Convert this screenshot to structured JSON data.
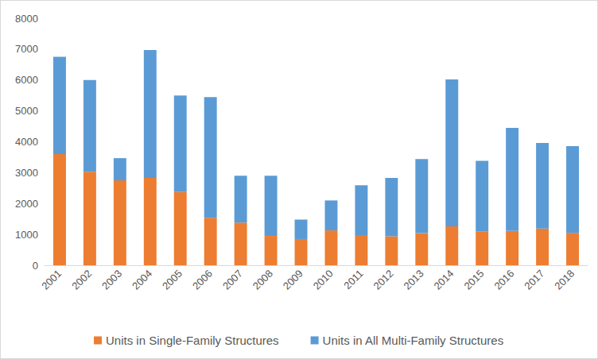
{
  "chart_data": {
    "type": "bar",
    "stacked": true,
    "categories": [
      "2001",
      "2002",
      "2003",
      "2004",
      "2005",
      "2006",
      "2007",
      "2008",
      "2009",
      "2010",
      "2011",
      "2012",
      "2013",
      "2014",
      "2015",
      "2016",
      "2017",
      "2018"
    ],
    "series": [
      {
        "name": "Units in Single-Family Structures",
        "color": "#ed7d31",
        "values": [
          3600,
          3030,
          2750,
          2830,
          2370,
          1540,
          1380,
          950,
          850,
          1130,
          980,
          940,
          1040,
          1260,
          1100,
          1110,
          1190,
          1050
        ]
      },
      {
        "name": "Units in All Multi-Family Structures",
        "color": "#5b9bd5",
        "values": [
          3150,
          2970,
          720,
          4140,
          3130,
          3910,
          1520,
          1950,
          630,
          970,
          1610,
          1890,
          2400,
          4760,
          2280,
          3340,
          2770,
          2810
        ]
      }
    ],
    "ylim": [
      0,
      8000
    ],
    "yticks": [
      0,
      1000,
      2000,
      3000,
      4000,
      5000,
      6000,
      7000,
      8000
    ],
    "grid": false,
    "legend": "bottom"
  }
}
